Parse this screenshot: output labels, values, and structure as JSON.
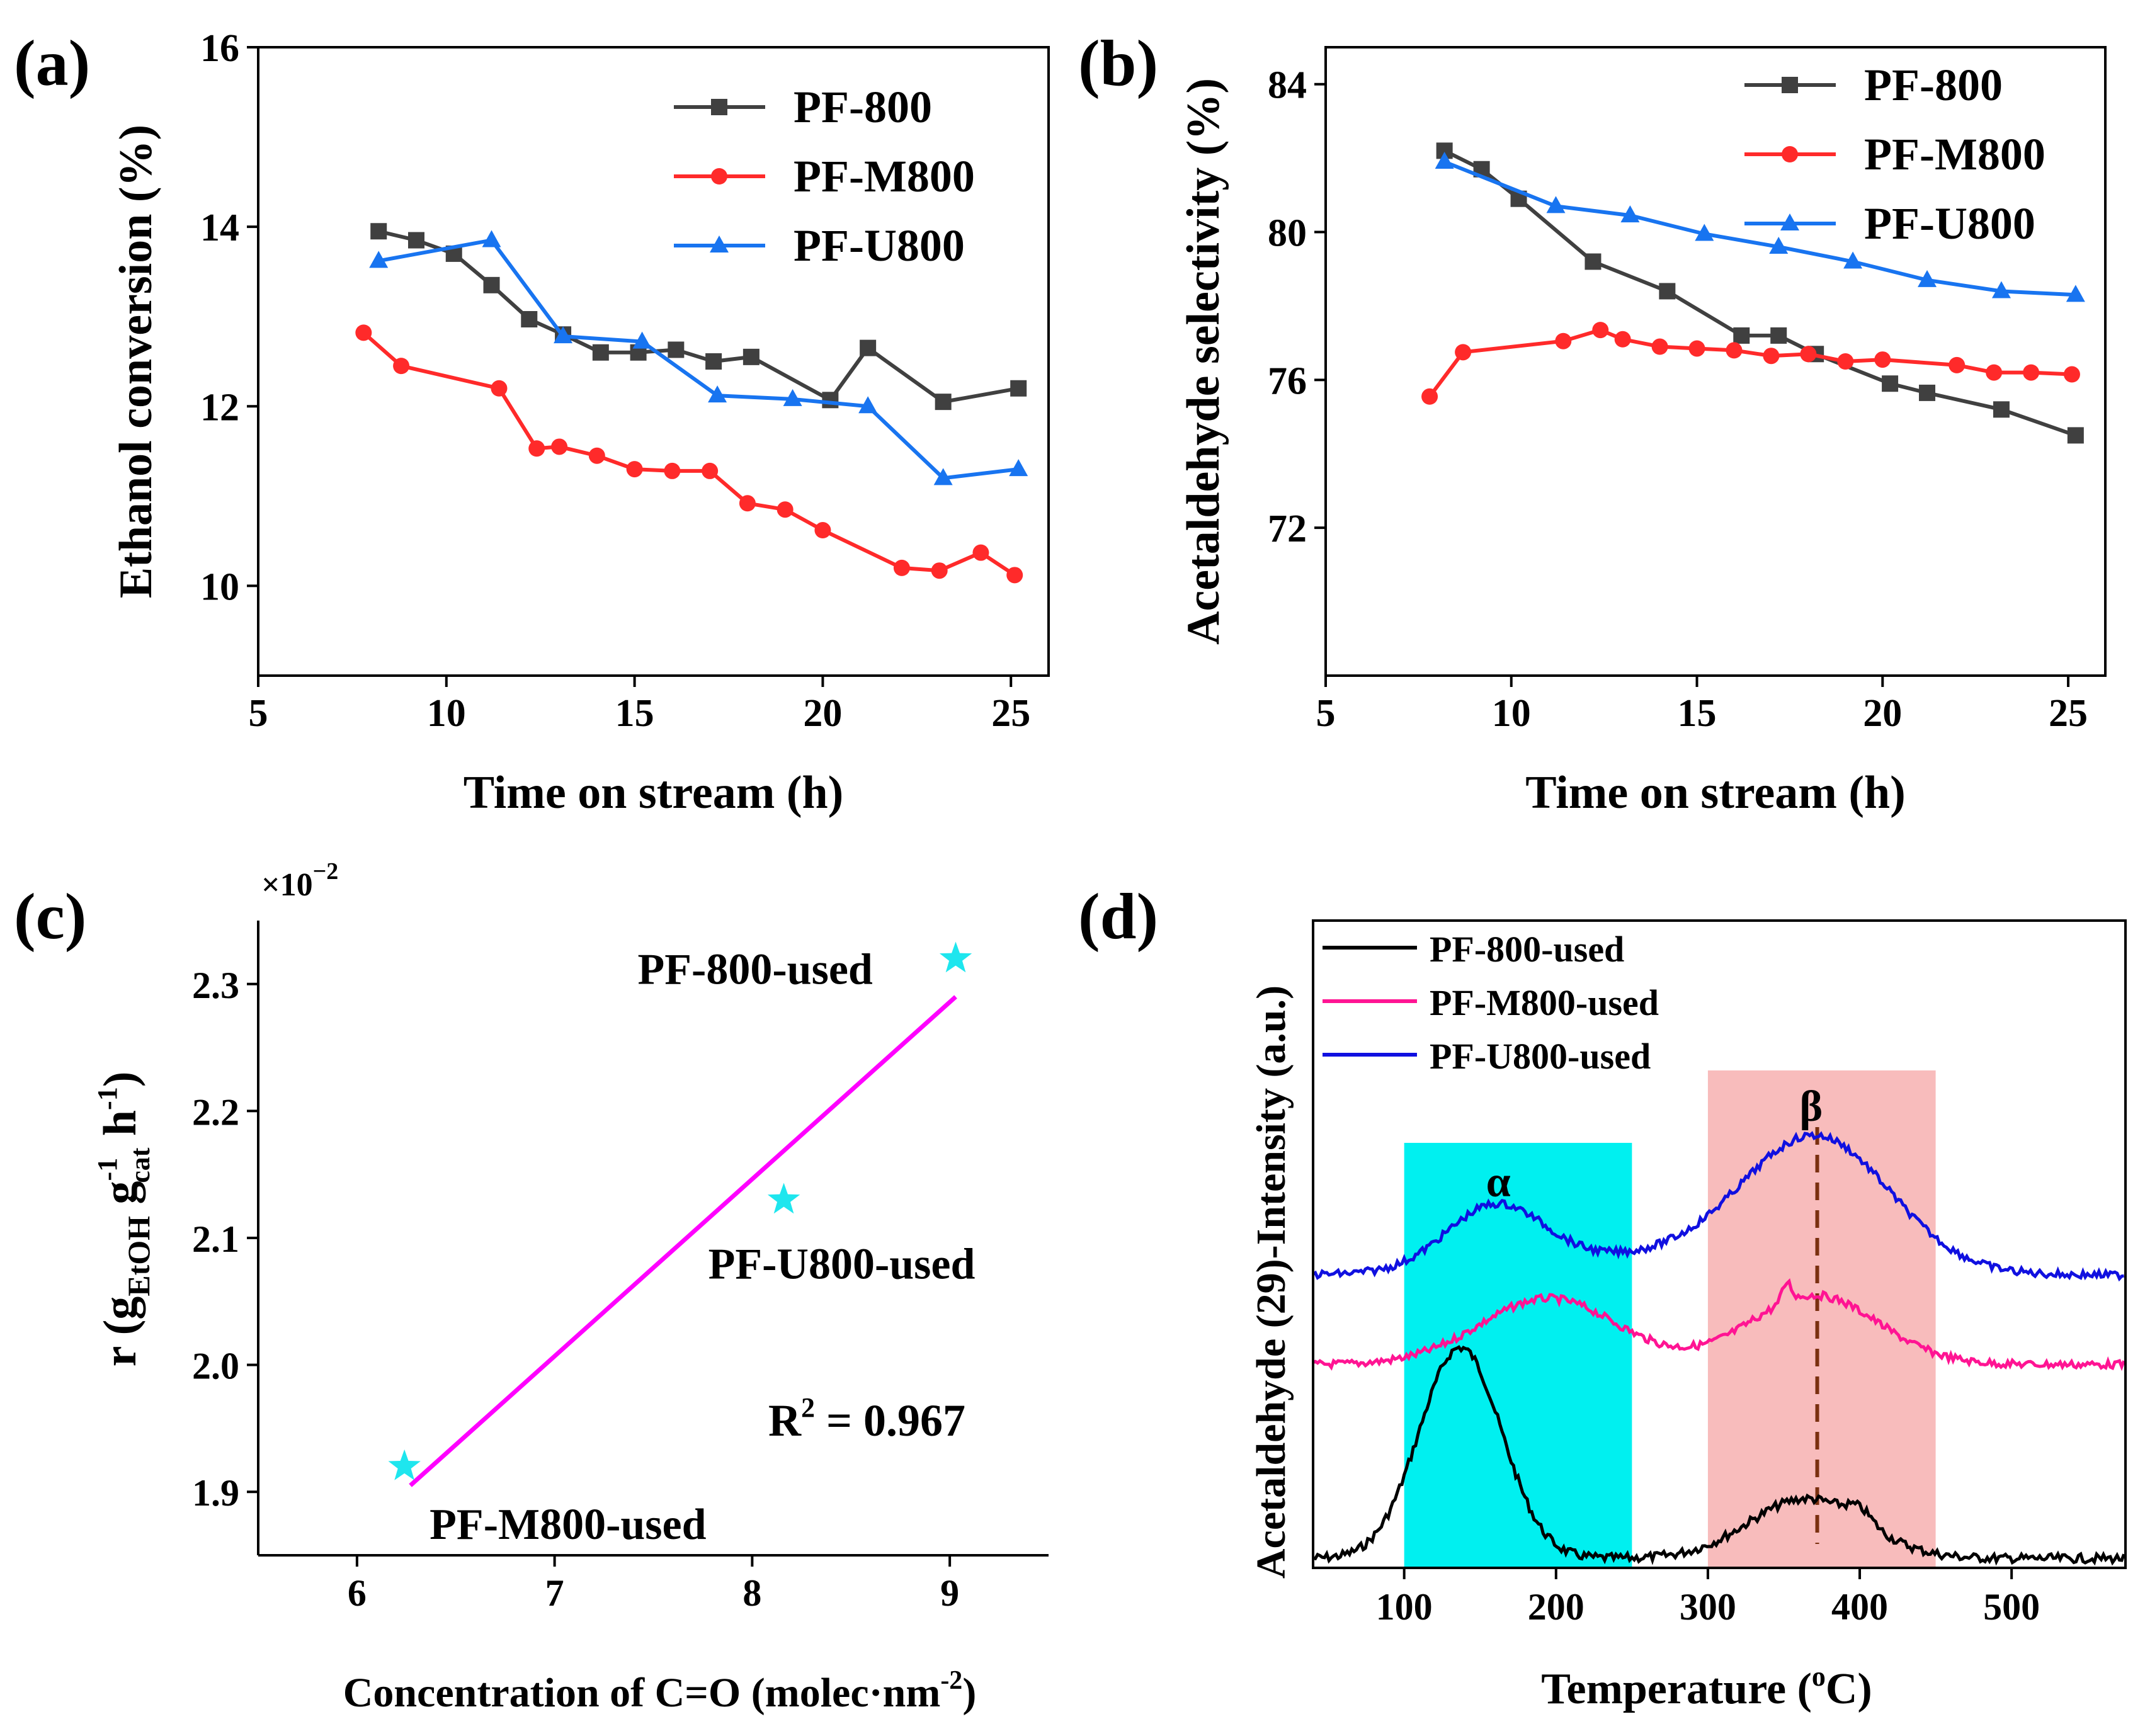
{
  "chart_data": [
    {
      "panel": "(a)",
      "type": "line",
      "xlabel": "Time on stream (h)",
      "ylabel": "Ethanol conversion (%)",
      "xlim": [
        5,
        26
      ],
      "ylim": [
        9,
        16
      ],
      "xticks": [
        5,
        10,
        15,
        20,
        25
      ],
      "yticks": [
        10,
        12,
        14,
        16
      ],
      "legend_position": "top-right",
      "series": [
        {
          "name": "PF-800",
          "color": "#404040",
          "marker": "square",
          "x": [
            8.2,
            9.2,
            10.2,
            11.2,
            12.2,
            13.1,
            14.1,
            15.1,
            16.1,
            17.1,
            18.1,
            20.2,
            21.2,
            23.2,
            25.2
          ],
          "y": [
            13.95,
            13.85,
            13.7,
            13.35,
            12.97,
            12.8,
            12.6,
            12.6,
            12.63,
            12.5,
            12.55,
            12.07,
            12.65,
            12.05,
            12.2
          ]
        },
        {
          "name": "PF-M800",
          "color": "#ff2a2a",
          "marker": "circle",
          "x": [
            7.8,
            8.8,
            11.4,
            12.4,
            13.0,
            14.0,
            15.0,
            16.0,
            17.0,
            18.0,
            19.0,
            20.0,
            22.1,
            23.1,
            24.2,
            25.1
          ],
          "y": [
            12.82,
            12.45,
            12.2,
            11.53,
            11.55,
            11.45,
            11.3,
            11.28,
            11.28,
            10.92,
            10.85,
            10.62,
            10.2,
            10.17,
            10.37,
            10.12
          ]
        },
        {
          "name": "PF-U800",
          "color": "#1874f0",
          "marker": "triangle",
          "x": [
            8.2,
            11.2,
            13.1,
            15.2,
            17.2,
            19.2,
            21.2,
            23.2,
            25.2
          ],
          "y": [
            13.62,
            13.85,
            12.78,
            12.72,
            12.12,
            12.08,
            12.0,
            11.2,
            11.3
          ]
        }
      ]
    },
    {
      "panel": "(b)",
      "type": "line",
      "xlabel": "Time on stream (h)",
      "ylabel": "Acetaldehyde selectivity (%)",
      "xlim": [
        5,
        26
      ],
      "ylim": [
        68,
        85
      ],
      "xticks": [
        5,
        10,
        15,
        20,
        25
      ],
      "yticks": [
        72,
        76,
        80,
        84
      ],
      "legend_position": "top-right",
      "series": [
        {
          "name": "PF-800",
          "color": "#404040",
          "marker": "square",
          "x": [
            8.2,
            9.2,
            10.2,
            12.2,
            14.2,
            16.2,
            17.2,
            18.2,
            20.2,
            21.2,
            23.2,
            25.2
          ],
          "y": [
            82.2,
            81.7,
            80.9,
            79.2,
            78.4,
            77.2,
            77.2,
            76.7,
            75.9,
            75.65,
            75.2,
            74.5
          ]
        },
        {
          "name": "PF-M800",
          "color": "#ff2a2a",
          "marker": "circle",
          "x": [
            7.8,
            8.7,
            11.4,
            12.4,
            13.0,
            14.0,
            15.0,
            16.0,
            17.0,
            18.0,
            19.0,
            20.0,
            22.0,
            23.0,
            24.0,
            25.1
          ],
          "y": [
            75.55,
            76.75,
            77.05,
            77.35,
            77.1,
            76.9,
            76.85,
            76.8,
            76.65,
            76.7,
            76.5,
            76.55,
            76.4,
            76.2,
            76.2,
            76.15
          ]
        },
        {
          "name": "PF-U800",
          "color": "#1874f0",
          "marker": "triangle",
          "x": [
            8.2,
            11.2,
            13.2,
            15.2,
            17.2,
            19.2,
            21.2,
            23.2,
            25.2
          ],
          "y": [
            81.9,
            80.7,
            80.45,
            79.95,
            79.6,
            79.2,
            78.7,
            78.4,
            78.3
          ]
        }
      ]
    },
    {
      "panel": "(c)",
      "type": "scatter",
      "xlabel": "Concentration of C=O (molec·nm",
      "xlabel_sup": "-2",
      "xlabel_end": ")",
      "ylabel_parts": [
        "r (g",
        "EtOH",
        " g",
        "-1",
        "cat",
        " h",
        "-1",
        ")"
      ],
      "xlim": [
        5.5,
        9.5
      ],
      "ylim": [
        1.85,
        2.35
      ],
      "xticks": [
        6,
        7,
        8,
        9
      ],
      "yticks": [
        1.9,
        2.0,
        2.1,
        2.2,
        2.3
      ],
      "ytick_labels": [
        "1.9",
        "2.0",
        "2.1",
        "2.2",
        "2.3"
      ],
      "multiplier_base": "×10",
      "multiplier_exp": "−2",
      "points": [
        {
          "name": "PF-800-used",
          "x": 9.03,
          "y": 2.32,
          "label_color": "#000000"
        },
        {
          "name": "PF-U800-used",
          "x": 8.16,
          "y": 2.13,
          "label_color": "#1010e0"
        },
        {
          "name": "PF-M800-used",
          "x": 6.24,
          "y": 1.92,
          "label_color": "#ff2020"
        }
      ],
      "marker_color": "#1ee6ee",
      "fit_line": {
        "x": [
          6.27,
          9.03
        ],
        "y": [
          1.905,
          2.29
        ],
        "color": "#ff00ff"
      },
      "r2_label": "R",
      "r2_sup": "2",
      "r2_value": " = 0.967"
    },
    {
      "panel": "(d)",
      "type": "line",
      "xlabel": "Temperature (",
      "xlabel_sup": "o",
      "xlabel_end": "C)",
      "ylabel": "Acetaldehyde (29)-Intensity (a.u.)",
      "xlim": [
        40,
        575
      ],
      "xticks": [
        100,
        200,
        300,
        400,
        500
      ],
      "regions": [
        {
          "label": "α",
          "x": [
            100,
            250
          ],
          "color": "#00f0f0"
        },
        {
          "label": "β",
          "x": [
            300,
            450
          ],
          "color": "#f8bcbc"
        }
      ],
      "region_label_color": "#e01010",
      "dashed_line_x": 372,
      "dashed_line_color": "#7a3010",
      "legend_position": "top-left",
      "series": [
        {
          "name": "PF-800-used",
          "color": "#000000"
        },
        {
          "name": "PF-M800-used",
          "color": "#ff1493"
        },
        {
          "name": "PF-U800-used",
          "color": "#1010e0"
        }
      ]
    }
  ]
}
